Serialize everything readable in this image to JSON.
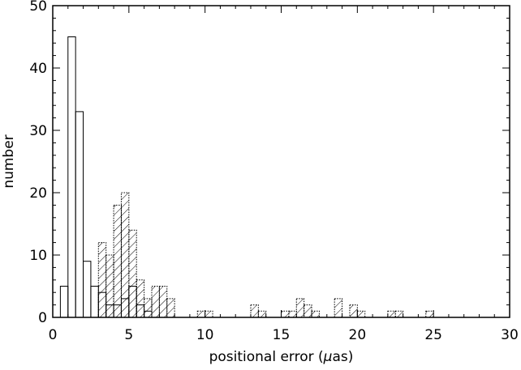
{
  "chart_data": {
    "type": "bar",
    "xlabel_prefix": "positional error (",
    "xlabel_symbol": "μ",
    "xlabel_suffix": "as)",
    "ylabel": "number",
    "xlim": [
      0,
      30
    ],
    "ylim": [
      0,
      50
    ],
    "bin_width": 0.5,
    "x_ticks": [
      0,
      5,
      10,
      15,
      20,
      25,
      30
    ],
    "x_tick_labels": [
      "0",
      "5",
      "10",
      "15",
      "20",
      "25",
      "30"
    ],
    "y_ticks": [
      0,
      10,
      20,
      30,
      40,
      50
    ],
    "y_tick_labels": [
      "0",
      "10",
      "20",
      "30",
      "40",
      "50"
    ],
    "grid": false,
    "legend": "none",
    "series": [
      {
        "style": "open-solid",
        "bins": [
          {
            "x0": 0.5,
            "value": 5
          },
          {
            "x0": 1.0,
            "value": 45
          },
          {
            "x0": 1.5,
            "value": 33
          },
          {
            "x0": 2.0,
            "value": 9
          },
          {
            "x0": 2.5,
            "value": 5
          },
          {
            "x0": 3.0,
            "value": 4
          },
          {
            "x0": 3.5,
            "value": 2
          },
          {
            "x0": 4.0,
            "value": 2
          },
          {
            "x0": 4.5,
            "value": 3
          },
          {
            "x0": 5.0,
            "value": 5
          },
          {
            "x0": 5.5,
            "value": 2
          },
          {
            "x0": 6.0,
            "value": 1
          }
        ]
      },
      {
        "style": "hatched-dotted",
        "bins": [
          {
            "x0": 3.0,
            "value": 12
          },
          {
            "x0": 3.5,
            "value": 10
          },
          {
            "x0": 4.0,
            "value": 18
          },
          {
            "x0": 4.5,
            "value": 20
          },
          {
            "x0": 5.0,
            "value": 14
          },
          {
            "x0": 5.5,
            "value": 6
          },
          {
            "x0": 6.0,
            "value": 3
          },
          {
            "x0": 6.5,
            "value": 5
          },
          {
            "x0": 7.0,
            "value": 5
          },
          {
            "x0": 7.5,
            "value": 3
          },
          {
            "x0": 9.5,
            "value": 1
          },
          {
            "x0": 10.0,
            "value": 1
          },
          {
            "x0": 13.0,
            "value": 2
          },
          {
            "x0": 13.5,
            "value": 1
          },
          {
            "x0": 15.0,
            "value": 1
          },
          {
            "x0": 15.5,
            "value": 1
          },
          {
            "x0": 16.0,
            "value": 3
          },
          {
            "x0": 16.5,
            "value": 2
          },
          {
            "x0": 17.0,
            "value": 1
          },
          {
            "x0": 18.5,
            "value": 3
          },
          {
            "x0": 19.5,
            "value": 2
          },
          {
            "x0": 20.0,
            "value": 1
          },
          {
            "x0": 22.0,
            "value": 1
          },
          {
            "x0": 22.5,
            "value": 1
          },
          {
            "x0": 24.5,
            "value": 1
          }
        ]
      }
    ]
  }
}
